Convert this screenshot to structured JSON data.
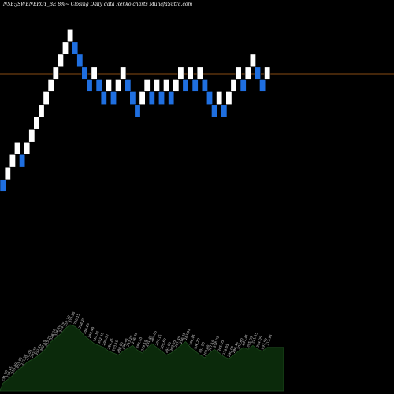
{
  "header": {
    "title": "NSE:JSWENERGY_BE 8%~  Closing Daily data  Renko  charts MunafaSutra.com"
  },
  "chart_data": {
    "type": "renko",
    "brick_pct": 8,
    "reference_lines": [
      534,
      494
    ],
    "bricks": [
      {
        "low": 262,
        "high": 282,
        "dir": "down"
      },
      {
        "low": 282,
        "high": 304,
        "dir": "up"
      },
      {
        "low": 304,
        "high": 328,
        "dir": "up"
      },
      {
        "low": 328,
        "high": 354,
        "dir": "up"
      },
      {
        "low": 304,
        "high": 328,
        "dir": "down"
      },
      {
        "low": 328,
        "high": 354,
        "dir": "up"
      },
      {
        "low": 354,
        "high": 382,
        "dir": "up"
      },
      {
        "low": 382,
        "high": 412,
        "dir": "up"
      },
      {
        "low": 412,
        "high": 444,
        "dir": "up"
      },
      {
        "low": 444,
        "high": 480,
        "dir": "up"
      },
      {
        "low": 480,
        "high": 518,
        "dir": "up"
      },
      {
        "low": 518,
        "high": 558,
        "dir": "up"
      },
      {
        "low": 558,
        "high": 602,
        "dir": "up"
      },
      {
        "low": 602,
        "high": 650,
        "dir": "up"
      },
      {
        "low": 650,
        "high": 700,
        "dir": "up"
      },
      {
        "low": 602,
        "high": 650,
        "dir": "down"
      },
      {
        "low": 558,
        "high": 602,
        "dir": "down"
      },
      {
        "low": 518,
        "high": 558,
        "dir": "down"
      },
      {
        "low": 480,
        "high": 518,
        "dir": "down"
      },
      {
        "low": 518,
        "high": 558,
        "dir": "up"
      },
      {
        "low": 480,
        "high": 518,
        "dir": "down"
      },
      {
        "low": 444,
        "high": 480,
        "dir": "down"
      },
      {
        "low": 480,
        "high": 518,
        "dir": "up"
      },
      {
        "low": 444,
        "high": 480,
        "dir": "down"
      },
      {
        "low": 480,
        "high": 518,
        "dir": "up"
      },
      {
        "low": 518,
        "high": 558,
        "dir": "up"
      },
      {
        "low": 480,
        "high": 518,
        "dir": "down"
      },
      {
        "low": 444,
        "high": 480,
        "dir": "down"
      },
      {
        "low": 412,
        "high": 444,
        "dir": "down"
      },
      {
        "low": 444,
        "high": 480,
        "dir": "up"
      },
      {
        "low": 480,
        "high": 518,
        "dir": "up"
      },
      {
        "low": 444,
        "high": 480,
        "dir": "down"
      },
      {
        "low": 480,
        "high": 518,
        "dir": "up"
      },
      {
        "low": 444,
        "high": 480,
        "dir": "down"
      },
      {
        "low": 480,
        "high": 518,
        "dir": "up"
      },
      {
        "low": 444,
        "high": 480,
        "dir": "down"
      },
      {
        "low": 480,
        "high": 518,
        "dir": "up"
      },
      {
        "low": 518,
        "high": 558,
        "dir": "up"
      },
      {
        "low": 480,
        "high": 518,
        "dir": "down"
      },
      {
        "low": 518,
        "high": 558,
        "dir": "up"
      },
      {
        "low": 480,
        "high": 518,
        "dir": "down"
      },
      {
        "low": 518,
        "high": 558,
        "dir": "up"
      },
      {
        "low": 480,
        "high": 518,
        "dir": "down"
      },
      {
        "low": 444,
        "high": 480,
        "dir": "down"
      },
      {
        "low": 412,
        "high": 444,
        "dir": "down"
      },
      {
        "low": 444,
        "high": 480,
        "dir": "up"
      },
      {
        "low": 412,
        "high": 444,
        "dir": "down"
      },
      {
        "low": 444,
        "high": 480,
        "dir": "up"
      },
      {
        "low": 480,
        "high": 518,
        "dir": "up"
      },
      {
        "low": 518,
        "high": 558,
        "dir": "up"
      },
      {
        "low": 480,
        "high": 518,
        "dir": "down"
      },
      {
        "low": 518,
        "high": 558,
        "dir": "up"
      },
      {
        "low": 558,
        "high": 602,
        "dir": "up"
      },
      {
        "low": 518,
        "high": 558,
        "dir": "down"
      },
      {
        "low": 480,
        "high": 518,
        "dir": "down"
      },
      {
        "low": 518,
        "high": 558,
        "dir": "up"
      }
    ],
    "price_labels": [
      "231.80",
      "239.95",
      "255.09",
      "263.05",
      "271.58",
      "276.05",
      "285.20",
      "292.10",
      "302.15",
      "315.25",
      "328.10",
      "336.20",
      "344.05",
      "352.10",
      "338.90",
      "330.15",
      "318.20",
      "306.25",
      "298.40",
      "310.55",
      "302.45",
      "290.60",
      "282.25",
      "293.15",
      "288.05",
      "296.45",
      "283.20",
      "276.30",
      "289.50",
      "279.10",
      "291.45",
      "284.05",
      "297.15",
      "289.60",
      "295.05",
      "303.55",
      "287.45",
      "296.25",
      "283.05",
      "298.45",
      "306.20",
      "301.55",
      "293.60",
      "287.10",
      "298.70",
      "285.05",
      "278.55",
      "290.05",
      "296.45",
      "303.80",
      "297.45",
      "305.20",
      "311.35",
      "304.05",
      "297.50",
      "312.95"
    ],
    "volume_area": [
      8,
      12,
      16,
      22,
      25,
      30,
      33,
      36,
      40,
      45,
      52,
      56,
      60,
      66,
      70,
      68,
      64,
      58,
      54,
      50,
      48,
      46,
      42,
      40,
      38,
      42,
      45,
      48,
      43,
      40,
      45,
      50,
      46,
      42,
      38,
      40,
      44,
      48,
      52,
      46,
      42,
      38,
      35,
      40,
      44,
      40,
      36,
      34,
      38,
      42,
      46,
      44,
      48,
      44,
      42,
      46
    ],
    "colors": {
      "background": "#000000",
      "up": "#ffffff",
      "down": "#1f6fe0",
      "brick_border": "#000000",
      "reference_line": "#b5651d",
      "volume_fill": "#0b2a0b",
      "volume_line": "#1f4d1f",
      "label_text": "#cccccc"
    }
  }
}
